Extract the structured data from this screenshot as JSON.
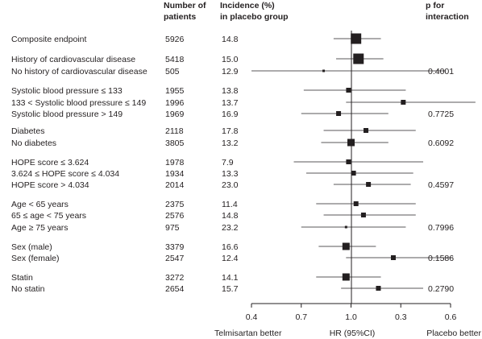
{
  "headers": {
    "patients": [
      "Number of",
      "patients"
    ],
    "incidence": [
      "Incidence (%)",
      "in placebo group"
    ],
    "p_interaction": [
      "p for",
      "interaction"
    ]
  },
  "chart_data": {
    "type": "forest",
    "xaxis": {
      "ticks": [
        "0.4",
        "0.7",
        "1.0",
        "0.3",
        "0.6"
      ],
      "label": "HR (95%CI)",
      "left_label": "Telmisartan better",
      "right_label": "Placebo better"
    },
    "reference_line_tick": "1.0",
    "rows": [
      {
        "group": "Composite endpoint",
        "patients": "5926",
        "incidence": "14.8",
        "hr": 0.82,
        "lo": 0.73,
        "hi": 0.92,
        "marker": "large",
        "p": ""
      },
      {
        "group": "History of cardiovascular disease",
        "patients": "5418",
        "incidence": "15.0",
        "hr": 0.83,
        "lo": 0.74,
        "hi": 0.93,
        "marker": "large",
        "p": ""
      },
      {
        "group": "No history of cardiovascular disease",
        "patients": "505",
        "incidence": "12.9",
        "hr": 0.69,
        "lo": 0.4,
        "hi": 1.18,
        "marker": "tiny",
        "p": "0.4001"
      },
      {
        "group": "Systolic blood pressure ≤ 133",
        "patients": "1955",
        "incidence": "13.8",
        "hr": 0.79,
        "lo": 0.61,
        "hi": 1.02,
        "marker": "small",
        "p": ""
      },
      {
        "group": "133 < Systolic blood pressure ≤ 149",
        "patients": "1996",
        "incidence": "13.7",
        "hr": 1.01,
        "lo": 0.78,
        "hi": 1.3,
        "marker": "small",
        "p": ""
      },
      {
        "group": "Systolic blood pressure > 149",
        "patients": "1969",
        "incidence": "16.9",
        "hr": 0.75,
        "lo": 0.6,
        "hi": 0.95,
        "marker": "small",
        "p": "0.7725"
      },
      {
        "group": "Diabetes",
        "patients": "2118",
        "incidence": "17.8",
        "hr": 0.86,
        "lo": 0.69,
        "hi": 1.06,
        "marker": "small",
        "p": ""
      },
      {
        "group": "No diabetes",
        "patients": "3805",
        "incidence": "13.2",
        "hr": 0.8,
        "lo": 0.68,
        "hi": 0.95,
        "marker": "medium",
        "p": "0.6092"
      },
      {
        "group": "HOPE score ≤ 3.624",
        "patients": "1978",
        "incidence": "7.9",
        "hr": 0.79,
        "lo": 0.57,
        "hi": 1.09,
        "marker": "small",
        "p": ""
      },
      {
        "group": "3.624 ≤ HOPE score  ≤ 4.034",
        "patients": "1934",
        "incidence": "13.3",
        "hr": 0.81,
        "lo": 0.62,
        "hi": 1.05,
        "marker": "small",
        "p": ""
      },
      {
        "group": "HOPE score > 4.034",
        "patients": "2014",
        "incidence": "23.0",
        "hr": 0.87,
        "lo": 0.73,
        "hi": 1.04,
        "marker": "small",
        "p": "0.4597"
      },
      {
        "group": "Age < 65 years",
        "patients": "2375",
        "incidence": "11.4",
        "hr": 0.82,
        "lo": 0.66,
        "hi": 1.06,
        "marker": "small",
        "p": ""
      },
      {
        "group": "65 ≤ age < 75 years",
        "patients": "2576",
        "incidence": "14.8",
        "hr": 0.85,
        "lo": 0.69,
        "hi": 1.06,
        "marker": "small",
        "p": ""
      },
      {
        "group": "Age ≥ 75 years",
        "patients": "975",
        "incidence": "23.2",
        "hr": 0.78,
        "lo": 0.6,
        "hi": 1.02,
        "marker": "tiny",
        "p": "0.7996"
      },
      {
        "group": "Sex (male)",
        "patients": "3379",
        "incidence": "16.6",
        "hr": 0.78,
        "lo": 0.67,
        "hi": 0.9,
        "marker": "medium",
        "p": ""
      },
      {
        "group": "Sex (female)",
        "patients": "2547",
        "incidence": "12.4",
        "hr": 0.97,
        "lo": 0.78,
        "hi": 1.21,
        "marker": "small",
        "p": "0.1586"
      },
      {
        "group": "Statin",
        "patients": "3272",
        "incidence": "14.1",
        "hr": 0.78,
        "lo": 0.66,
        "hi": 0.92,
        "marker": "medium",
        "p": ""
      },
      {
        "group": "No statin",
        "patients": "2654",
        "incidence": "15.7",
        "hr": 0.91,
        "lo": 0.76,
        "hi": 1.09,
        "marker": "small",
        "p": "0.2790"
      }
    ]
  }
}
